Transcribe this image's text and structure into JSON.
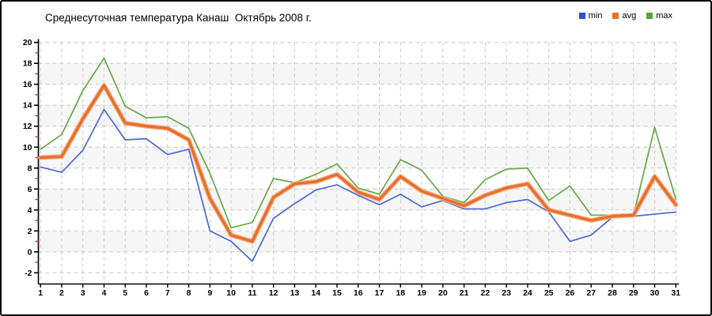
{
  "title": "Среднесуточная температура Канаш  Октябрь 2008 г.",
  "chart_data": {
    "type": "line",
    "title": "Среднесуточная температура Канаш  Октябрь 2008 г.",
    "x": [
      1,
      2,
      3,
      4,
      5,
      6,
      7,
      8,
      9,
      10,
      11,
      12,
      13,
      14,
      15,
      16,
      17,
      18,
      19,
      20,
      21,
      22,
      23,
      24,
      25,
      26,
      27,
      28,
      29,
      30,
      31
    ],
    "xlabel": "",
    "ylabel": "",
    "ylim": [
      -2,
      20
    ],
    "ytick_step": 2,
    "grid": true,
    "legend_position": "top-right",
    "series": [
      {
        "name": "min",
        "color": "#2a50cc",
        "line_color": "#4a68d8",
        "values": [
          8.1,
          7.6,
          9.7,
          13.6,
          10.7,
          10.8,
          9.3,
          9.8,
          2.0,
          1.0,
          -0.9,
          3.2,
          4.6,
          5.9,
          6.4,
          5.4,
          4.5,
          5.5,
          4.3,
          4.9,
          4.1,
          4.1,
          4.7,
          5.0,
          3.8,
          1.0,
          1.6,
          3.3,
          3.4,
          3.6,
          3.8
        ]
      },
      {
        "name": "avg",
        "color": "#e8702a",
        "line_color": "#e66f2e",
        "values": [
          9.0,
          9.1,
          12.7,
          15.9,
          12.3,
          12.0,
          11.8,
          10.7,
          5.1,
          1.6,
          1.0,
          5.2,
          6.5,
          6.7,
          7.4,
          5.7,
          5.0,
          7.2,
          5.8,
          5.1,
          4.4,
          5.4,
          6.1,
          6.5,
          4.0,
          3.5,
          3.0,
          3.4,
          3.5,
          7.2,
          4.5
        ]
      },
      {
        "name": "max",
        "color": "#57a639",
        "line_color": "#65a94a",
        "values": [
          9.8,
          11.2,
          15.4,
          18.5,
          13.9,
          12.8,
          12.9,
          11.8,
          7.5,
          2.3,
          2.8,
          7.0,
          6.6,
          7.4,
          8.4,
          6.1,
          5.5,
          8.8,
          7.8,
          5.3,
          4.7,
          6.9,
          7.9,
          8.0,
          4.9,
          6.3,
          3.5,
          3.5,
          3.5,
          11.9,
          5.0
        ]
      }
    ],
    "band_colors": [
      "#ffffff",
      "#f6f6f6"
    ],
    "grid_color": "#c8c8c8",
    "axis_color": "#000000",
    "minor_tick_color": "#cc3333",
    "avg_halo_color": "#f7b184"
  }
}
